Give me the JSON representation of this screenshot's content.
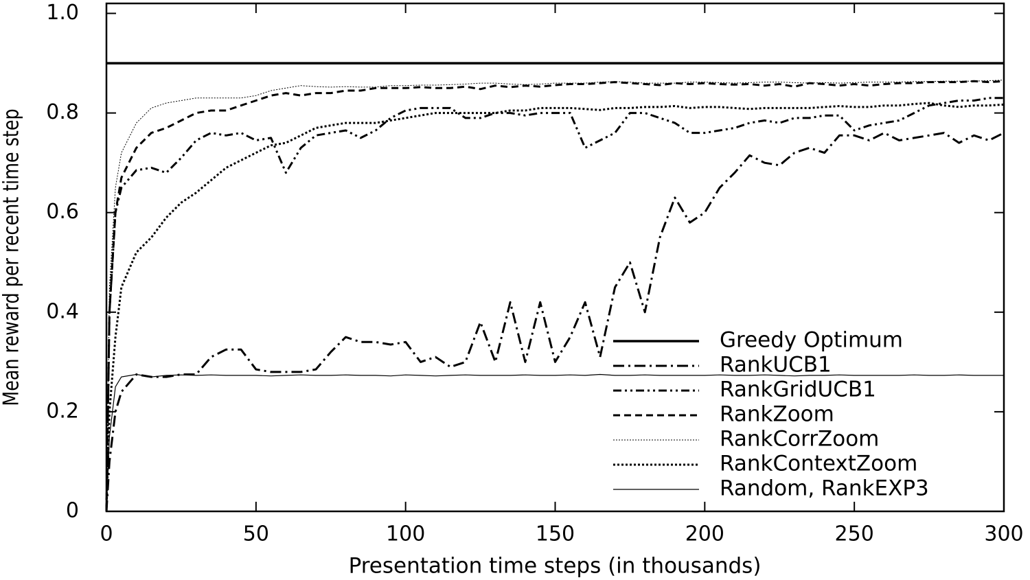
{
  "chart_data": {
    "type": "line",
    "x_label": "Presentation time steps (in thousands)",
    "y_label": "Mean reward per recent time step",
    "xlim": [
      0,
      300
    ],
    "xticks": [
      0,
      50,
      100,
      150,
      200,
      250,
      300
    ],
    "ylim": [
      0,
      1.02
    ],
    "yticks": [
      0,
      0.2,
      0.4,
      0.6,
      0.8,
      {
        "value": 1,
        "label": "1.0"
      }
    ],
    "legend": "lower right",
    "x": [
      0,
      1,
      3,
      5,
      10,
      15,
      20,
      25,
      30,
      35,
      40,
      45,
      50,
      55,
      60,
      65,
      70,
      75,
      80,
      85,
      90,
      95,
      100,
      105,
      110,
      115,
      120,
      125,
      130,
      135,
      140,
      145,
      150,
      155,
      160,
      165,
      170,
      175,
      180,
      185,
      190,
      195,
      200,
      205,
      210,
      215,
      220,
      225,
      230,
      235,
      240,
      245,
      250,
      255,
      260,
      265,
      270,
      275,
      280,
      285,
      290,
      295,
      300
    ],
    "series": [
      {
        "name": "Greedy Optimum",
        "color": "#000000",
        "values": [
          0.9,
          0.9,
          0.9,
          0.9,
          0.9,
          0.9,
          0.9,
          0.9,
          0.9,
          0.9,
          0.9,
          0.9,
          0.9,
          0.9,
          0.9,
          0.9,
          0.9,
          0.9,
          0.9,
          0.9,
          0.9,
          0.9,
          0.9,
          0.9,
          0.9,
          0.9,
          0.9,
          0.9,
          0.9,
          0.9,
          0.9,
          0.9,
          0.9,
          0.9,
          0.9,
          0.9,
          0.9,
          0.9,
          0.9,
          0.9,
          0.9,
          0.9,
          0.9,
          0.9,
          0.9,
          0.9,
          0.9,
          0.9,
          0.9,
          0.9,
          0.9,
          0.9,
          0.9,
          0.9,
          0.9,
          0.9,
          0.9,
          0.9,
          0.9,
          0.9,
          0.9,
          0.9,
          0.9
        ]
      },
      {
        "name": "RankUCB1",
        "color": "#000000",
        "values": [
          0,
          0.1,
          0.2,
          0.24,
          0.275,
          0.27,
          0.27,
          0.275,
          0.275,
          0.31,
          0.325,
          0.325,
          0.285,
          0.28,
          0.28,
          0.28,
          0.285,
          0.32,
          0.35,
          0.34,
          0.34,
          0.335,
          0.34,
          0.3,
          0.31,
          0.29,
          0.3,
          0.38,
          0.3,
          0.42,
          0.3,
          0.42,
          0.3,
          0.35,
          0.42,
          0.31,
          0.45,
          0.5,
          0.4,
          0.55,
          0.63,
          0.58,
          0.6,
          0.65,
          0.68,
          0.715,
          0.7,
          0.695,
          0.72,
          0.73,
          0.72,
          0.755,
          0.755,
          0.745,
          0.76,
          0.745,
          0.75,
          0.755,
          0.76,
          0.74,
          0.755,
          0.745,
          0.76
        ]
      },
      {
        "name": "RankGridUCB1",
        "color": "#000000",
        "values": [
          0,
          0.4,
          0.6,
          0.65,
          0.685,
          0.69,
          0.68,
          0.71,
          0.745,
          0.76,
          0.755,
          0.76,
          0.745,
          0.75,
          0.68,
          0.73,
          0.755,
          0.76,
          0.765,
          0.75,
          0.765,
          0.79,
          0.805,
          0.81,
          0.81,
          0.81,
          0.79,
          0.79,
          0.8,
          0.8,
          0.795,
          0.8,
          0.8,
          0.8,
          0.73,
          0.745,
          0.76,
          0.8,
          0.8,
          0.79,
          0.78,
          0.76,
          0.76,
          0.765,
          0.77,
          0.78,
          0.785,
          0.78,
          0.79,
          0.79,
          0.795,
          0.795,
          0.765,
          0.775,
          0.78,
          0.785,
          0.8,
          0.815,
          0.82,
          0.825,
          0.825,
          0.83,
          0.83
        ]
      },
      {
        "name": "RankZoom",
        "color": "#000000",
        "values": [
          0,
          0.4,
          0.6,
          0.67,
          0.73,
          0.76,
          0.77,
          0.785,
          0.8,
          0.805,
          0.805,
          0.815,
          0.825,
          0.835,
          0.84,
          0.835,
          0.84,
          0.84,
          0.845,
          0.845,
          0.85,
          0.85,
          0.85,
          0.852,
          0.85,
          0.85,
          0.853,
          0.848,
          0.855,
          0.852,
          0.855,
          0.853,
          0.856,
          0.858,
          0.858,
          0.86,
          0.862,
          0.86,
          0.858,
          0.856,
          0.86,
          0.858,
          0.86,
          0.858,
          0.857,
          0.858,
          0.855,
          0.858,
          0.853,
          0.86,
          0.858,
          0.855,
          0.858,
          0.855,
          0.858,
          0.86,
          0.86,
          0.862,
          0.862,
          0.862,
          0.864,
          0.862,
          0.864
        ]
      },
      {
        "name": "RankCorrZoom",
        "color": "#000000",
        "values": [
          0,
          0.45,
          0.65,
          0.72,
          0.78,
          0.81,
          0.82,
          0.825,
          0.83,
          0.83,
          0.83,
          0.83,
          0.835,
          0.845,
          0.85,
          0.855,
          0.853,
          0.852,
          0.853,
          0.852,
          0.852,
          0.855,
          0.855,
          0.856,
          0.856,
          0.857,
          0.858,
          0.86,
          0.86,
          0.858,
          0.857,
          0.858,
          0.86,
          0.86,
          0.86,
          0.862,
          0.863,
          0.862,
          0.86,
          0.86,
          0.86,
          0.862,
          0.862,
          0.861,
          0.86,
          0.861,
          0.862,
          0.862,
          0.861,
          0.86,
          0.861,
          0.86,
          0.861,
          0.862,
          0.862,
          0.862,
          0.863,
          0.863,
          0.864,
          0.864,
          0.864,
          0.865,
          0.866
        ]
      },
      {
        "name": "RankContextZoom",
        "color": "#000000",
        "values": [
          0,
          0.2,
          0.35,
          0.45,
          0.52,
          0.55,
          0.59,
          0.62,
          0.64,
          0.665,
          0.69,
          0.705,
          0.72,
          0.735,
          0.74,
          0.755,
          0.77,
          0.775,
          0.78,
          0.78,
          0.78,
          0.785,
          0.79,
          0.795,
          0.8,
          0.8,
          0.8,
          0.8,
          0.8,
          0.805,
          0.805,
          0.81,
          0.81,
          0.81,
          0.808,
          0.806,
          0.81,
          0.81,
          0.812,
          0.812,
          0.814,
          0.81,
          0.812,
          0.812,
          0.81,
          0.808,
          0.81,
          0.81,
          0.81,
          0.81,
          0.812,
          0.814,
          0.812,
          0.812,
          0.815,
          0.815,
          0.818,
          0.82,
          0.815,
          0.812,
          0.815,
          0.815,
          0.817
        ]
      },
      {
        "name": "Random, RankEXP3",
        "color": "#000000",
        "values": [
          0,
          0.15,
          0.25,
          0.27,
          0.275,
          0.27,
          0.273,
          0.274,
          0.273,
          0.274,
          0.273,
          0.273,
          0.273,
          0.272,
          0.273,
          0.274,
          0.273,
          0.273,
          0.274,
          0.273,
          0.273,
          0.272,
          0.274,
          0.273,
          0.272,
          0.273,
          0.274,
          0.273,
          0.273,
          0.273,
          0.274,
          0.273,
          0.273,
          0.274,
          0.273,
          0.275,
          0.273,
          0.273,
          0.274,
          0.273,
          0.273,
          0.273,
          0.273,
          0.274,
          0.273,
          0.273,
          0.274,
          0.273,
          0.272,
          0.273,
          0.273,
          0.274,
          0.273,
          0.273,
          0.273,
          0.273,
          0.274,
          0.273,
          0.273,
          0.274,
          0.273,
          0.273,
          0.273
        ]
      }
    ]
  }
}
